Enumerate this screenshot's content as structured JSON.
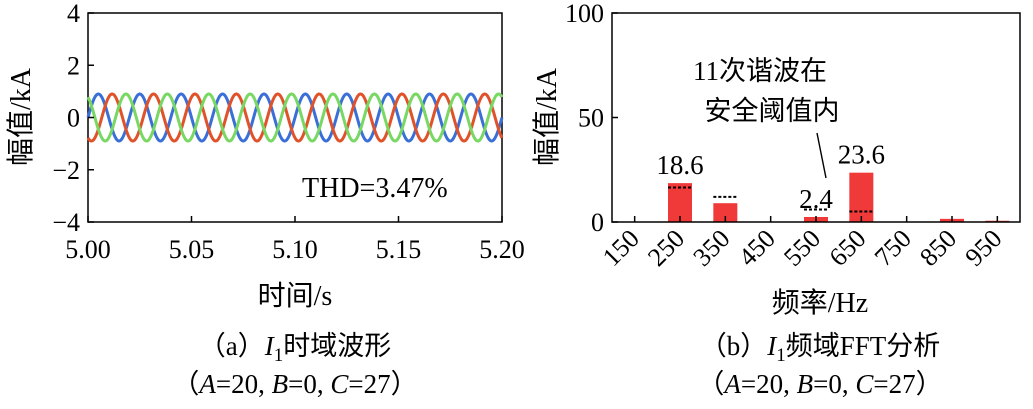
{
  "chart_data": [
    {
      "type": "line",
      "title": "I1时域波形",
      "xlabel": "时间/s",
      "ylabel": "幅值/kA",
      "xlim": [
        5.0,
        5.2
      ],
      "ylim": [
        -4,
        4
      ],
      "xticks": [
        "5.00",
        "5.05",
        "5.10",
        "5.15",
        "5.20"
      ],
      "yticks": [
        "4",
        "2",
        "0",
        "−2",
        "−4"
      ],
      "grid": false,
      "annotation": "THD=3.47%",
      "frequency_hz": 50,
      "series": [
        {
          "name": "phase A",
          "color": "#3b6fd8",
          "amplitude": 0.9,
          "phase_deg": 0
        },
        {
          "name": "phase B",
          "color": "#e0532a",
          "amplitude": 0.9,
          "phase_deg": -120
        },
        {
          "name": "phase C",
          "color": "#78d863",
          "amplitude": 0.9,
          "phase_deg": 120
        }
      ],
      "caption": {
        "prefix": "（a）",
        "var": "I",
        "sub": "1",
        "text": "时域波形",
        "params_open": "（",
        "A_label": "A",
        "A_val": "=20, ",
        "B_label": "B",
        "B_val": "=0, ",
        "C_label": "C",
        "C_val": "=27",
        "params_close": "）"
      }
    },
    {
      "type": "bar",
      "title": "I1频域FFT分析",
      "xlabel": "频率/Hz",
      "ylabel": "幅值/kA",
      "ylim": [
        0,
        100
      ],
      "yticks": [
        "100",
        "50",
        "0"
      ],
      "categories": [
        "150",
        "250",
        "350",
        "450",
        "550",
        "650",
        "750",
        "850",
        "950"
      ],
      "values": [
        0,
        18.6,
        9,
        0,
        2.4,
        23.6,
        0,
        1.5,
        0.6
      ],
      "thresholds": [
        null,
        16.5,
        12,
        null,
        6,
        5,
        null,
        null,
        null
      ],
      "bar_color": "#f03a3a",
      "data_labels": [
        {
          "category": "250",
          "text": "18.6"
        },
        {
          "category": "550",
          "text": "2.4"
        },
        {
          "category": "650",
          "text": "23.6"
        }
      ],
      "annotation_lines": [
        "11次谐波在",
        "安全阈值内"
      ],
      "caption": {
        "prefix": "（b）",
        "var": "I",
        "sub": "1",
        "text": "频域FFT分析",
        "params_open": "（",
        "A_label": "A",
        "A_val": "=20, ",
        "B_label": "B",
        "B_val": "=0, ",
        "C_label": "C",
        "C_val": "=27",
        "params_close": "）"
      }
    }
  ]
}
